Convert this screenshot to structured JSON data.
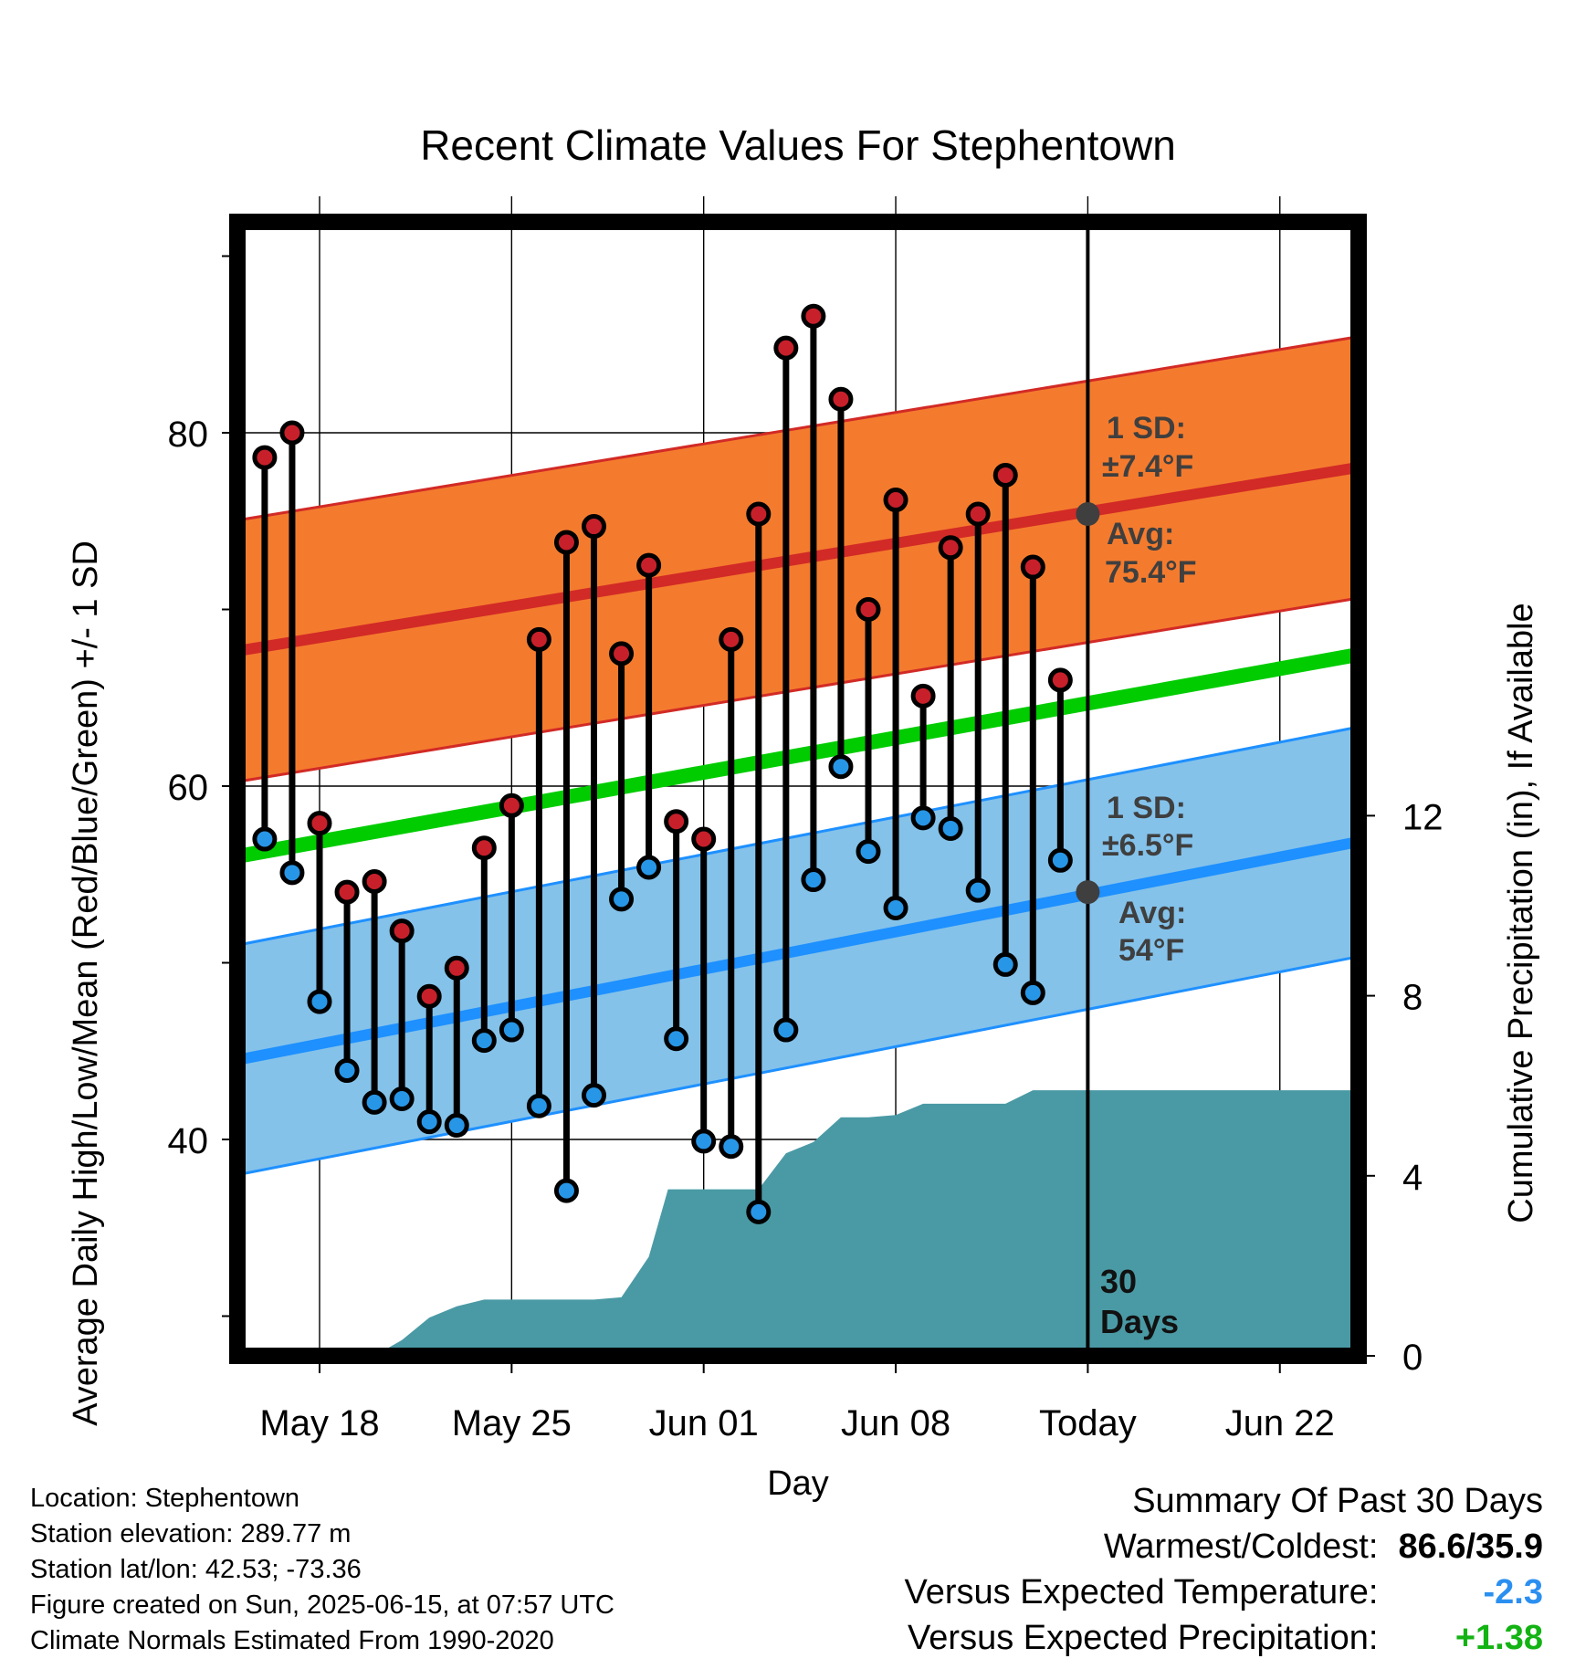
{
  "chart_data": {
    "type": "line",
    "title": "Recent Climate Values For Stephentown",
    "xlabel": "Day",
    "ylabel_left": "Average Daily High/Low/Mean (Red/Blue/Green) +/- 1 SD",
    "ylabel_right": "Cumulative Precipitation (in), If Available",
    "x_ticks": [
      "May 18",
      "May 25",
      "Jun 01",
      "Jun 08",
      "Today",
      "Jun 22"
    ],
    "x_tick_days": [
      18,
      25,
      32,
      39,
      46,
      53
    ],
    "xlim_days": [
      14.8,
      55.7
    ],
    "temp_ylim": [
      28,
      92
    ],
    "temp_ticks": [
      40,
      60,
      80
    ],
    "precip_ylim": [
      0,
      30
    ],
    "precip_ticks": [
      0,
      4,
      8,
      12
    ],
    "grid": true,
    "today_day": 46,
    "days_label_line1": "30",
    "days_label_line2": "Days",
    "high_normal": {
      "start": 67.9,
      "end": 78.0,
      "sd": 7.4
    },
    "low_normal": {
      "start": 44.8,
      "end": 56.8,
      "sd": 6.5
    },
    "mean_normal": {
      "start": 56.3,
      "end": 67.4
    },
    "high_annotation": {
      "sd_label": "1 SD:",
      "sd_value": "±7.4°F",
      "avg_label": "Avg:",
      "avg_value": "75.4°F",
      "today_value": 75.4
    },
    "low_annotation": {
      "sd_label": "1 SD:",
      "sd_value": "±6.5°F",
      "avg_label": "Avg:",
      "avg_value": "54°F",
      "today_value": 54.0
    },
    "days": [
      16,
      17,
      18,
      19,
      20,
      21,
      22,
      23,
      24,
      25,
      26,
      27,
      28,
      29,
      30,
      31,
      32,
      33,
      34,
      35,
      36,
      37,
      38,
      39,
      40,
      41,
      42,
      43,
      44,
      45
    ],
    "daily_high": [
      78.6,
      80.0,
      57.9,
      54.0,
      54.6,
      51.8,
      48.1,
      49.7,
      56.5,
      58.9,
      68.3,
      73.8,
      74.7,
      67.5,
      72.5,
      58.0,
      57.0,
      68.3,
      75.4,
      84.8,
      86.6,
      81.9,
      70.0,
      76.2,
      65.1,
      73.5,
      75.4,
      77.6,
      72.4,
      66.0
    ],
    "daily_low": [
      57.0,
      55.1,
      47.8,
      43.9,
      42.1,
      42.3,
      41.0,
      40.8,
      45.6,
      46.2,
      41.9,
      37.1,
      42.5,
      53.6,
      55.4,
      45.7,
      39.9,
      39.6,
      35.9,
      46.2,
      54.7,
      61.1,
      56.3,
      53.1,
      58.2,
      57.6,
      54.1,
      49.9,
      48.3,
      55.8
    ],
    "precip_cumulative": {
      "x": [
        16,
        18,
        20,
        21,
        22,
        23,
        24,
        25,
        26,
        27,
        28,
        29,
        30,
        30.7,
        31,
        32,
        33,
        34,
        35,
        36,
        37,
        38,
        39,
        40,
        41,
        42,
        43,
        44,
        45,
        46,
        47,
        55.7
      ],
      "y": [
        0,
        0,
        0,
        0.35,
        0.85,
        1.1,
        1.25,
        1.25,
        1.25,
        1.25,
        1.25,
        1.3,
        2.2,
        3.7,
        3.7,
        3.7,
        3.7,
        3.7,
        4.5,
        4.75,
        5.3,
        5.3,
        5.35,
        5.6,
        5.6,
        5.6,
        5.6,
        5.9,
        5.9,
        5.9,
        5.9,
        5.9
      ]
    },
    "colors": {
      "high_band": "#f47b2e",
      "high_line": "#d22a26",
      "low_band": "#84c2ea",
      "low_line": "#1e90ff",
      "mean_line": "#00cc00",
      "precip": "#4a9aa5",
      "high_dot": "#c8202a",
      "low_dot": "#2896e6",
      "annotation": "#3f3f3f"
    }
  },
  "info": {
    "location": "Location: Stephentown",
    "elevation": "Station elevation: 289.77 m",
    "latlon": "Station lat/lon: 42.53; -73.36",
    "created": "Figure created on Sun, 2025-06-15, at 07:57 UTC",
    "normals": "Climate Normals Estimated From 1990-2020"
  },
  "summary": {
    "title": "Summary Of Past 30 Days",
    "warmest_label": "Warmest/Coldest:",
    "warmest_value": "86.6/35.9",
    "temp_label": "Versus Expected Temperature:",
    "temp_value": "-2.3",
    "temp_color": "#2b8ff0",
    "precip_label": "Versus Expected Precipitation:",
    "precip_value": "+1.38",
    "precip_color": "#13b313"
  }
}
